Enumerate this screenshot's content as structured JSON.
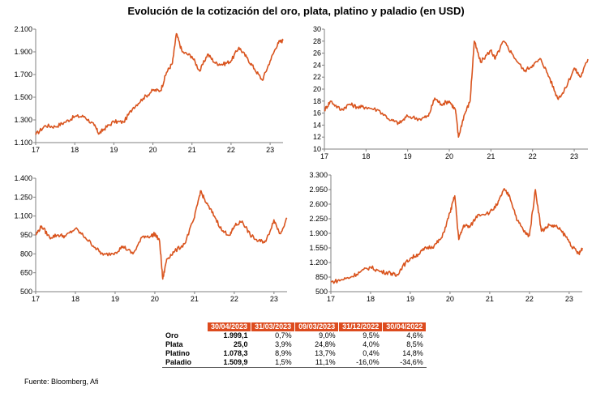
{
  "title": "Evolución de la cotización del oro, plata, platino y paladio (en USD)",
  "source": "Fuente: Bloomberg, Afi",
  "colors": {
    "line": "#d9541e",
    "header": "#dd4b1e",
    "axis": "#808080"
  },
  "chart_data": [
    {
      "type": "line",
      "name": "oro",
      "title": "",
      "xlabel": "",
      "ylabel": "",
      "xlim": [
        2017,
        2023.33
      ],
      "ylim": [
        1100,
        2100
      ],
      "xticks": [
        {
          "v": 2017,
          "label": "17"
        },
        {
          "v": 2018,
          "label": "18"
        },
        {
          "v": 2019,
          "label": "19"
        },
        {
          "v": 2020,
          "label": "20"
        },
        {
          "v": 2021,
          "label": "21"
        },
        {
          "v": 2022,
          "label": "22"
        },
        {
          "v": 2023,
          "label": "23"
        }
      ],
      "yticks": [
        {
          "v": 1100,
          "label": "1.100"
        },
        {
          "v": 1300,
          "label": "1.300"
        },
        {
          "v": 1500,
          "label": "1.500"
        },
        {
          "v": 1700,
          "label": "1.700"
        },
        {
          "v": 1900,
          "label": "1.900"
        },
        {
          "v": 2100,
          "label": "2.100"
        }
      ],
      "x": [
        2017.0,
        2017.25,
        2017.5,
        2017.75,
        2018.0,
        2018.25,
        2018.5,
        2018.62,
        2018.75,
        2019.0,
        2019.25,
        2019.5,
        2019.75,
        2020.0,
        2020.2,
        2020.35,
        2020.5,
        2020.6,
        2020.75,
        2021.0,
        2021.2,
        2021.4,
        2021.6,
        2021.8,
        2022.0,
        2022.2,
        2022.4,
        2022.6,
        2022.8,
        2023.0,
        2023.2,
        2023.33
      ],
      "y": [
        1170,
        1250,
        1240,
        1280,
        1330,
        1330,
        1250,
        1180,
        1220,
        1285,
        1280,
        1410,
        1490,
        1560,
        1560,
        1720,
        1800,
        2060,
        1900,
        1860,
        1730,
        1880,
        1800,
        1790,
        1820,
        1940,
        1850,
        1750,
        1650,
        1820,
        1980,
        2000
      ]
    },
    {
      "type": "line",
      "name": "plata",
      "title": "",
      "xlabel": "",
      "ylabel": "",
      "xlim": [
        2017,
        2023.33
      ],
      "ylim": [
        10,
        30
      ],
      "xticks": [
        {
          "v": 2017,
          "label": "17"
        },
        {
          "v": 2018,
          "label": "18"
        },
        {
          "v": 2019,
          "label": "19"
        },
        {
          "v": 2020,
          "label": "20"
        },
        {
          "v": 2021,
          "label": "21"
        },
        {
          "v": 2022,
          "label": "22"
        },
        {
          "v": 2023,
          "label": "23"
        }
      ],
      "yticks": [
        {
          "v": 10,
          "label": "10"
        },
        {
          "v": 12,
          "label": "12"
        },
        {
          "v": 14,
          "label": "14"
        },
        {
          "v": 16,
          "label": "16"
        },
        {
          "v": 18,
          "label": "18"
        },
        {
          "v": 20,
          "label": "20"
        },
        {
          "v": 22,
          "label": "22"
        },
        {
          "v": 24,
          "label": "24"
        },
        {
          "v": 26,
          "label": "26"
        },
        {
          "v": 28,
          "label": "28"
        },
        {
          "v": 30,
          "label": "30"
        }
      ],
      "x": [
        2017.0,
        2017.15,
        2017.4,
        2017.6,
        2017.8,
        2018.0,
        2018.3,
        2018.6,
        2018.8,
        2019.0,
        2019.3,
        2019.5,
        2019.65,
        2019.8,
        2020.0,
        2020.15,
        2020.22,
        2020.35,
        2020.5,
        2020.6,
        2020.75,
        2021.0,
        2021.1,
        2021.3,
        2021.5,
        2021.8,
        2022.0,
        2022.2,
        2022.4,
        2022.6,
        2022.75,
        2023.0,
        2023.15,
        2023.33
      ],
      "y": [
        16.5,
        18.0,
        16.5,
        17.5,
        17.0,
        17.0,
        16.5,
        14.8,
        14.3,
        15.5,
        15.0,
        15.5,
        18.5,
        17.5,
        18.0,
        16.5,
        12.0,
        15.5,
        18.0,
        28.0,
        24.5,
        26.5,
        25.0,
        28.0,
        26.0,
        23.0,
        24.0,
        25.0,
        22.0,
        18.5,
        19.5,
        23.5,
        22.0,
        25.0
      ]
    },
    {
      "type": "line",
      "name": "platino",
      "title": "",
      "xlabel": "",
      "ylabel": "",
      "xlim": [
        2017,
        2023.33
      ],
      "ylim": [
        500,
        1400
      ],
      "xticks": [
        {
          "v": 2017,
          "label": "17"
        },
        {
          "v": 2018,
          "label": "18"
        },
        {
          "v": 2019,
          "label": "19"
        },
        {
          "v": 2020,
          "label": "20"
        },
        {
          "v": 2021,
          "label": "21"
        },
        {
          "v": 2022,
          "label": "22"
        },
        {
          "v": 2023,
          "label": "23"
        }
      ],
      "yticks": [
        {
          "v": 500,
          "label": "500"
        },
        {
          "v": 650,
          "label": "650"
        },
        {
          "v": 800,
          "label": "800"
        },
        {
          "v": 950,
          "label": "950"
        },
        {
          "v": 1100,
          "label": "1.100"
        },
        {
          "v": 1250,
          "label": "1.250"
        },
        {
          "v": 1400,
          "label": "1.400"
        }
      ],
      "x": [
        2017.0,
        2017.15,
        2017.35,
        2017.55,
        2017.75,
        2018.0,
        2018.25,
        2018.5,
        2018.7,
        2019.0,
        2019.2,
        2019.45,
        2019.7,
        2019.9,
        2020.0,
        2020.12,
        2020.2,
        2020.3,
        2020.5,
        2020.75,
        2021.0,
        2021.15,
        2021.3,
        2021.5,
        2021.7,
        2021.9,
        2022.0,
        2022.2,
        2022.4,
        2022.6,
        2022.8,
        2023.0,
        2023.15,
        2023.33
      ],
      "y": [
        950,
        1020,
        930,
        950,
        940,
        1000,
        930,
        850,
        790,
        810,
        860,
        800,
        940,
        940,
        960,
        900,
        600,
        760,
        820,
        880,
        1090,
        1300,
        1200,
        1100,
        980,
        950,
        1020,
        1060,
        950,
        900,
        900,
        1070,
        960,
        1080
      ]
    },
    {
      "type": "line",
      "name": "paladio",
      "title": "",
      "xlabel": "",
      "ylabel": "",
      "xlim": [
        2017,
        2023.33
      ],
      "ylim": [
        500,
        3300
      ],
      "xticks": [
        {
          "v": 2017,
          "label": "17"
        },
        {
          "v": 2018,
          "label": "18"
        },
        {
          "v": 2019,
          "label": "19"
        },
        {
          "v": 2020,
          "label": "20"
        },
        {
          "v": 2021,
          "label": "21"
        },
        {
          "v": 2022,
          "label": "22"
        },
        {
          "v": 2023,
          "label": "23"
        }
      ],
      "yticks": [
        {
          "v": 500,
          "label": "500"
        },
        {
          "v": 850,
          "label": "850"
        },
        {
          "v": 1200,
          "label": "1.200"
        },
        {
          "v": 1550,
          "label": "1.550"
        },
        {
          "v": 1900,
          "label": "1.900"
        },
        {
          "v": 2250,
          "label": "2.250"
        },
        {
          "v": 2600,
          "label": "2.600"
        },
        {
          "v": 2950,
          "label": "2.950"
        },
        {
          "v": 3300,
          "label": "3.300"
        }
      ],
      "x": [
        2017.0,
        2017.25,
        2017.5,
        2017.75,
        2018.0,
        2018.25,
        2018.5,
        2018.65,
        2018.8,
        2019.0,
        2019.2,
        2019.4,
        2019.6,
        2019.8,
        2020.0,
        2020.12,
        2020.22,
        2020.35,
        2020.5,
        2020.7,
        2021.0,
        2021.2,
        2021.35,
        2021.5,
        2021.7,
        2021.9,
        2022.0,
        2022.15,
        2022.3,
        2022.5,
        2022.7,
        2022.9,
        2023.1,
        2023.25,
        2023.33
      ],
      "y": [
        730,
        780,
        850,
        980,
        1090,
        980,
        950,
        880,
        1100,
        1300,
        1400,
        1550,
        1600,
        1800,
        2400,
        2800,
        1750,
        2100,
        2050,
        2350,
        2400,
        2600,
        2950,
        2800,
        2200,
        1900,
        1850,
        2950,
        1950,
        2100,
        2050,
        1850,
        1550,
        1400,
        1550
      ]
    }
  ],
  "table": {
    "headers": [
      "30/04/2023",
      "31/03/2023",
      "09/03/2023",
      "31/12/2022",
      "30/04/2022"
    ],
    "rows": [
      {
        "name": "Oro",
        "values": [
          "1.999,1",
          "0,7%",
          "9,0%",
          "9,5%",
          "4,6%"
        ]
      },
      {
        "name": "Plata",
        "values": [
          "25,0",
          "3,9%",
          "24,8%",
          "4,0%",
          "8,5%"
        ]
      },
      {
        "name": "Platino",
        "values": [
          "1.078,3",
          "8,9%",
          "13,7%",
          "0,4%",
          "14,8%"
        ]
      },
      {
        "name": "Paladio",
        "values": [
          "1.509,9",
          "1,5%",
          "11,1%",
          "-16,0%",
          "-34,6%"
        ]
      }
    ]
  }
}
